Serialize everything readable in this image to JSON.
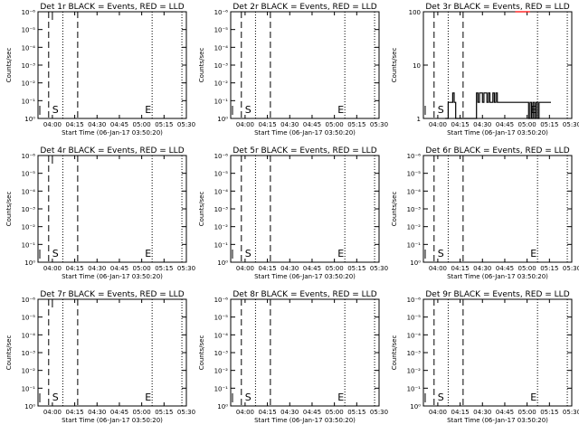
{
  "figure": {
    "x_tick_labels": [
      "04:00",
      "04:15",
      "04:30",
      "04:45",
      "05:00",
      "05:15",
      "05:30"
    ],
    "xlabel": "Start Time (06-Jan-17 03:50:20)",
    "ylabel": "Counts/sec",
    "log_y_tick_labels": [
      "10⁰",
      "10⁻¹",
      "10⁻²",
      "10⁻³",
      "10⁻⁴",
      "10⁻⁵",
      "10⁻⁶"
    ],
    "det3_y_tick_labels": [
      "1",
      "10",
      "100"
    ],
    "markers": {
      "start": "S",
      "end": "E"
    }
  },
  "chart_data": [
    {
      "type": "line",
      "title": "Det 1r BLACK = Events, RED = LLD",
      "x": {
        "min": "03:50:20",
        "max": "05:30:00"
      },
      "y_scale": "log",
      "ylim": [
        1e-06,
        1
      ],
      "series": [],
      "vlines": {
        "dashed": [
          "03:57:30",
          "04:17:00"
        ],
        "dotted": [
          "04:07:00",
          "05:07:00",
          "05:27:00"
        ],
        "solid": [
          "04:00:00"
        ]
      }
    },
    {
      "type": "line",
      "title": "Det 2r BLACK = Events, RED = LLD",
      "x": {
        "min": "03:50:20",
        "max": "05:30:00"
      },
      "y_scale": "log",
      "ylim": [
        1e-06,
        1
      ],
      "series": [],
      "vlines": {
        "dashed": [
          "03:57:30",
          "04:17:00"
        ],
        "dotted": [
          "04:07:00",
          "05:07:00",
          "05:27:00"
        ],
        "solid": []
      }
    },
    {
      "type": "line",
      "title": "Det 3r BLACK = Events, RED = LLD",
      "x": {
        "min": "03:50:20",
        "max": "05:30:00"
      },
      "y_scale": "log",
      "ylim": [
        1,
        100
      ],
      "series": [
        {
          "color": "#000000",
          "x": [
            "04:05:00",
            "04:06:00",
            "04:07:00",
            "04:08:00",
            "04:09:00",
            "04:10:00",
            "04:11:00",
            "04:12:00",
            "04:13:00",
            "04:14:00",
            "04:15:00",
            "04:16:00",
            "04:17:00",
            "04:18:00",
            "04:19:00",
            "04:20:00",
            "04:21:00",
            "04:22:00",
            "04:23:00",
            "04:24:00",
            "04:25:00",
            "04:26:00",
            "04:27:00",
            "04:28:00",
            "04:29:00",
            "04:30:00",
            "04:31:00",
            "04:32:00",
            "04:33:00",
            "04:34:00",
            "04:35:00",
            "04:36:00",
            "04:37:00",
            "04:38:00",
            "04:39:00",
            "04:40:00",
            "04:41:00",
            "04:42:00",
            "04:43:00",
            "04:44:00",
            "04:45:00",
            "04:46:00",
            "04:47:00",
            "04:48:00",
            "04:49:00",
            "04:50:00",
            "04:51:00",
            "04:52:00",
            "04:53:00",
            "04:54:00",
            "04:55:00",
            "04:56:00",
            "04:57:00",
            "04:58:00",
            "04:59:00",
            "05:00:00",
            "05:01:00",
            "05:02:00",
            "05:03:00",
            "05:04:00",
            "05:05:00",
            "05:06:00",
            "05:07:00",
            "05:08:00",
            "05:09:00",
            "05:10:00",
            "05:11:00",
            "05:12:00",
            "05:13:00",
            "05:14:00",
            "05:15:00"
          ],
          "values": [
            1,
            1,
            2,
            2,
            2,
            3,
            2,
            1,
            1,
            1,
            1,
            1,
            1,
            1,
            1,
            1,
            1,
            1,
            1,
            1,
            1,
            3,
            2,
            3,
            3,
            2,
            3,
            3,
            2,
            3,
            2,
            2,
            3,
            2,
            3,
            2,
            2,
            2,
            2,
            2,
            2,
            2,
            2,
            2,
            2,
            2,
            2,
            2,
            2,
            2,
            2,
            2,
            2,
            2,
            2,
            2,
            1,
            2,
            1,
            2,
            1,
            2,
            1,
            2,
            2,
            2,
            2,
            2,
            2,
            2,
            2
          ]
        },
        {
          "color": "#ff0000",
          "x": [
            "04:52:00",
            "04:57:00"
          ],
          "values": [
            100,
            100
          ]
        }
      ],
      "vlines": {
        "dashed": [
          "03:57:30",
          "04:17:00"
        ],
        "dotted": [
          "04:07:00",
          "05:07:00",
          "05:27:00"
        ],
        "solid": []
      }
    },
    {
      "type": "line",
      "title": "Det 4r BLACK = Events, RED = LLD",
      "x": {
        "min": "03:50:20",
        "max": "05:30:00"
      },
      "y_scale": "log",
      "ylim": [
        1e-06,
        1
      ],
      "series": [],
      "vlines": {
        "dashed": [
          "03:57:30",
          "04:17:00"
        ],
        "dotted": [
          "04:07:00",
          "05:07:00",
          "05:27:00"
        ],
        "solid": [
          "04:00:00"
        ]
      }
    },
    {
      "type": "line",
      "title": "Det 5r BLACK = Events, RED = LLD",
      "x": {
        "min": "03:50:20",
        "max": "05:30:00"
      },
      "y_scale": "log",
      "ylim": [
        1e-06,
        1
      ],
      "series": [],
      "vlines": {
        "dashed": [
          "03:57:30",
          "04:17:00"
        ],
        "dotted": [
          "04:07:00",
          "05:07:00",
          "05:27:00"
        ],
        "solid": []
      }
    },
    {
      "type": "line",
      "title": "Det 6r BLACK = Events, RED = LLD",
      "x": {
        "min": "03:50:20",
        "max": "05:30:00"
      },
      "y_scale": "log",
      "ylim": [
        1e-06,
        1
      ],
      "series": [],
      "vlines": {
        "dashed": [
          "03:57:30",
          "04:17:00"
        ],
        "dotted": [
          "04:07:00",
          "05:07:00",
          "05:27:00"
        ],
        "solid": []
      }
    },
    {
      "type": "line",
      "title": "Det 7r BLACK = Events, RED = LLD",
      "x": {
        "min": "03:50:20",
        "max": "05:30:00"
      },
      "y_scale": "log",
      "ylim": [
        1e-06,
        1
      ],
      "series": [],
      "vlines": {
        "dashed": [
          "03:57:30",
          "04:17:00"
        ],
        "dotted": [
          "04:07:00",
          "05:07:00",
          "05:27:00"
        ],
        "solid": [
          "04:00:00"
        ]
      }
    },
    {
      "type": "line",
      "title": "Det 8r BLACK = Events, RED = LLD",
      "x": {
        "min": "03:50:20",
        "max": "05:30:00"
      },
      "y_scale": "log",
      "ylim": [
        1e-06,
        1
      ],
      "series": [],
      "vlines": {
        "dashed": [
          "03:57:30",
          "04:17:00"
        ],
        "dotted": [
          "04:07:00",
          "05:07:00",
          "05:27:00"
        ],
        "solid": []
      }
    },
    {
      "type": "line",
      "title": "Det 9r BLACK = Events, RED = LLD",
      "x": {
        "min": "03:50:20",
        "max": "05:30:00"
      },
      "y_scale": "log",
      "ylim": [
        1e-06,
        1
      ],
      "series": [],
      "vlines": {
        "dashed": [
          "03:57:30",
          "04:17:00"
        ],
        "dotted": [
          "04:07:00",
          "05:07:00",
          "05:27:00"
        ],
        "solid": []
      }
    }
  ]
}
